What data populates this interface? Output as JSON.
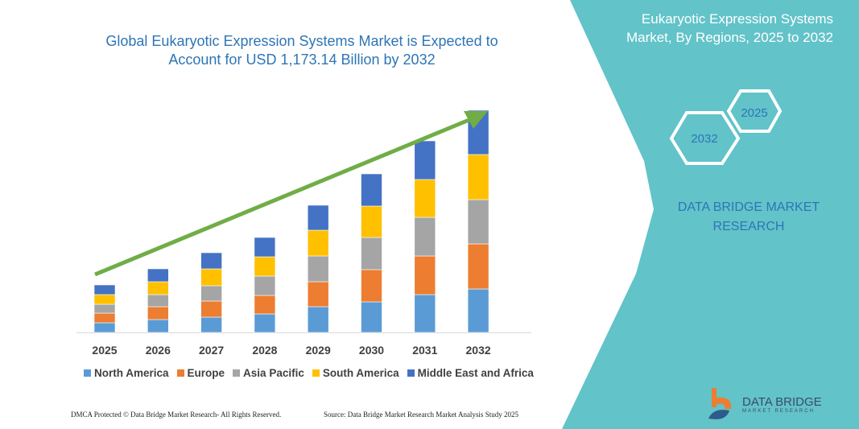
{
  "title": "Global Eukaryotic Expression Systems Market is Expected to Account for USD 1,173.14 Billion by 2032",
  "panel": {
    "title": "Eukaryotic Expression Systems Market, By Regions, 2025 to 2032",
    "hex_left": "2032",
    "hex_right": "2025",
    "brand": "DATA BRIDGE MARKET RESEARCH"
  },
  "footer": {
    "copyright": "DMCA Protected © Data Bridge Market Research- All Rights Reserved.",
    "source": "Source: Data Bridge Market Research Market Analysis Study 2025"
  },
  "logo": {
    "name": "DATA BRIDGE",
    "sub": "MARKET RESEARCH"
  },
  "colors": {
    "panel": "#62c3c9",
    "arrow": "#70ad47",
    "title": "#2e75b6"
  },
  "chart_data": {
    "type": "bar",
    "stacked": true,
    "categories": [
      "2025",
      "2026",
      "2027",
      "2028",
      "2029",
      "2030",
      "2031",
      "2032"
    ],
    "series": [
      {
        "name": "North America",
        "color": "#5b9bd5",
        "values": [
          12,
          16,
          19,
          23,
          32,
          38,
          47,
          54
        ]
      },
      {
        "name": "Europe",
        "color": "#ed7d31",
        "values": [
          12,
          16,
          20,
          23,
          31,
          40,
          48,
          56
        ]
      },
      {
        "name": "Asia Pacific",
        "color": "#a5a5a5",
        "values": [
          11,
          15,
          19,
          24,
          32,
          40,
          48,
          55
        ]
      },
      {
        "name": "South America",
        "color": "#ffc000",
        "values": [
          12,
          16,
          21,
          24,
          32,
          39,
          47,
          56
        ]
      },
      {
        "name": "Middle East and Africa",
        "color": "#4472c4",
        "values": [
          12,
          16,
          20,
          24,
          31,
          40,
          48,
          55
        ]
      }
    ],
    "yaxis_shown": false,
    "grid": false,
    "legend": "bottom",
    "trend_arrow": true
  }
}
